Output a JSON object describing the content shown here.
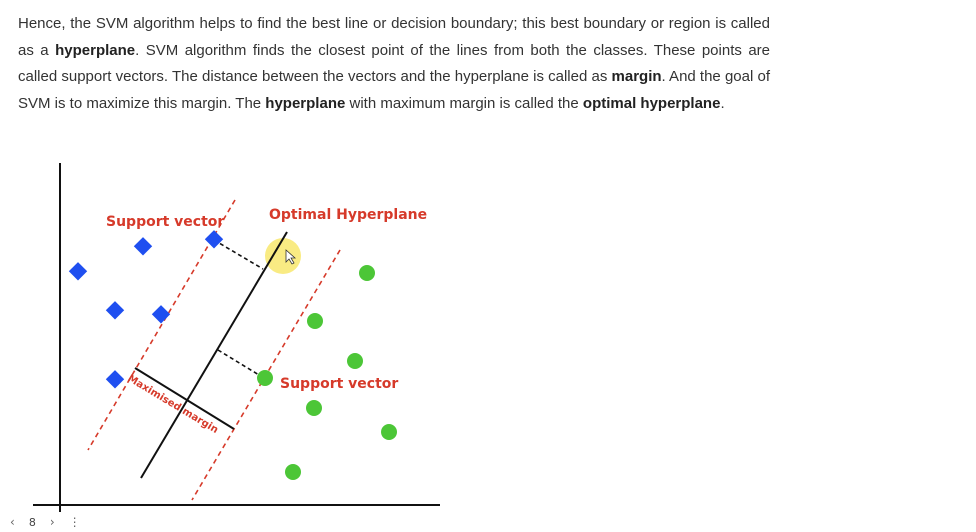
{
  "article": {
    "s1": "Hence, the SVM algorithm helps to find the best line or decision boundary; this best boundary or region is called as a ",
    "b1": "hyperplane",
    "s2": ". SVM algorithm finds the closest point of the lines from both the classes. These points are called support vectors. The distance between the vectors and the hyperplane is called as ",
    "b2": "margin",
    "s3": ". And the goal of SVM is to maximize this margin. The ",
    "b3": "hyperplane",
    "s4": " with maximum margin is called the ",
    "b4": "optimal hyperplane",
    "s5": "."
  },
  "diagram": {
    "label_support_vector_top": "Support vector",
    "label_optimal_hyperplane": "Optimal Hyperplane",
    "label_support_vector_right": "Support vector",
    "label_margin": "Maximised margin",
    "colors": {
      "class_a": "#1f4ff0",
      "class_b": "#4cc637",
      "annotation": "#d63a2a",
      "highlight": "#f7e45a"
    }
  },
  "pager": {
    "prev_icon": "chevron-left-icon",
    "page": "8",
    "next_icon": "chevron-right-icon",
    "more_icon": "more-vertical-icon"
  }
}
